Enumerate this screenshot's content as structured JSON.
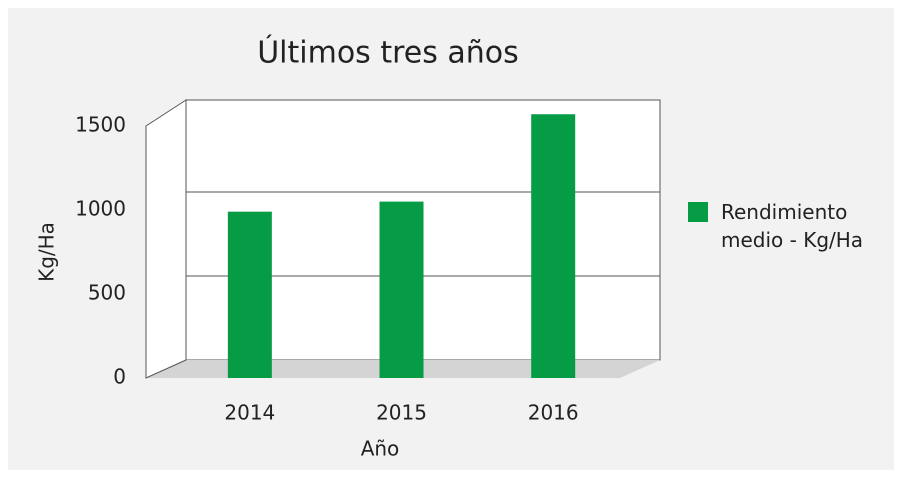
{
  "chart_data": {
    "type": "bar",
    "title": "Últimos tres años",
    "x_label": "Año",
    "y_label": "Kg/Ha",
    "categories": [
      "2014",
      "2015",
      "2016"
    ],
    "series": [
      {
        "name": "Rendimiento medio - Kg/Ha",
        "color": "#069c45",
        "values": [
          990,
          1050,
          1570
        ]
      }
    ],
    "ylim": [
      0,
      1500
    ],
    "yticks": [
      0,
      500,
      1000,
      1500
    ],
    "grid": true,
    "legend": "right"
  }
}
